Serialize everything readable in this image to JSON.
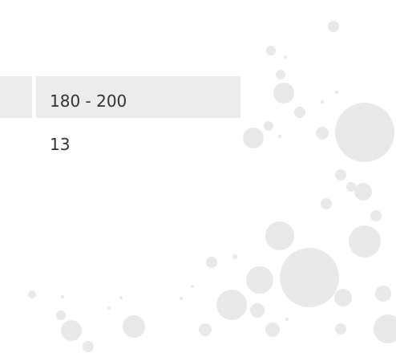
{
  "table": {
    "header": [
      "180 - 200"
    ],
    "rows": [
      [
        "13"
      ]
    ]
  }
}
